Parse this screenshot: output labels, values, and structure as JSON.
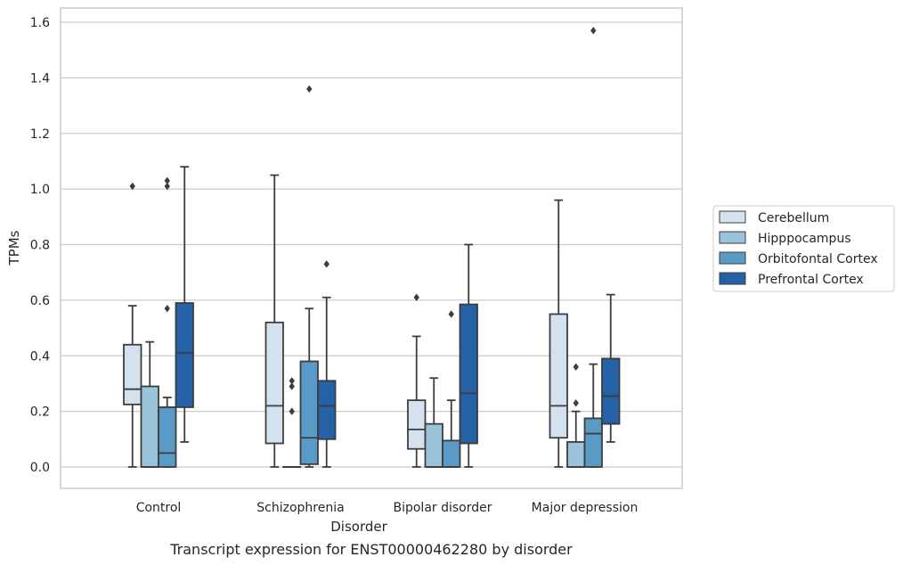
{
  "chart_data": {
    "type": "box",
    "title": "",
    "caption": "Transcript expression for ENST00000462280 by disorder",
    "xlabel": "Disorder",
    "ylabel": "TPMs",
    "ylim": [
      -0.075,
      1.65
    ],
    "yticks": [
      0.0,
      0.2,
      0.4,
      0.6,
      0.8,
      1.0,
      1.2,
      1.4,
      1.6
    ],
    "ytick_labels": [
      "0.0",
      "0.2",
      "0.4",
      "0.6",
      "0.8",
      "1.0",
      "1.2",
      "1.4",
      "1.6"
    ],
    "grid": true,
    "legend_position": "right",
    "categories": [
      "Control",
      "Schizophrenia",
      "Bipolar disorder",
      "Major depression"
    ],
    "series": [
      {
        "name": "Cerebellum",
        "color": "#d4e2f0",
        "boxes": [
          {
            "whislo": 0.0,
            "q1": 0.225,
            "med": 0.28,
            "q3": 0.44,
            "whishi": 0.58,
            "fliers": [
              1.01
            ]
          },
          {
            "whislo": 0.0,
            "q1": 0.085,
            "med": 0.22,
            "q3": 0.52,
            "whishi": 1.05,
            "fliers": []
          },
          {
            "whislo": 0.0,
            "q1": 0.065,
            "med": 0.135,
            "q3": 0.24,
            "whishi": 0.47,
            "fliers": [
              0.61
            ]
          },
          {
            "whislo": 0.0,
            "q1": 0.105,
            "med": 0.22,
            "q3": 0.55,
            "whishi": 0.96,
            "fliers": []
          }
        ]
      },
      {
        "name": "Hipppocampus",
        "color": "#9ac3dc",
        "boxes": [
          {
            "whislo": 0.0,
            "q1": 0.0,
            "med": 0.0,
            "q3": 0.29,
            "whishi": 0.45,
            "fliers": []
          },
          {
            "whislo": 0.0,
            "q1": 0.0,
            "med": 0.0,
            "q3": 0.0,
            "whishi": 0.0,
            "fliers": [
              0.2,
              0.29,
              0.31
            ]
          },
          {
            "whislo": 0.0,
            "q1": 0.0,
            "med": 0.0,
            "q3": 0.155,
            "whishi": 0.32,
            "fliers": []
          },
          {
            "whislo": 0.0,
            "q1": 0.0,
            "med": 0.0,
            "q3": 0.09,
            "whishi": 0.2,
            "fliers": [
              0.23,
              0.36
            ]
          }
        ]
      },
      {
        "name": "Orbitofontal Cortex",
        "color": "#5a9ac6",
        "boxes": [
          {
            "whislo": 0.0,
            "q1": 0.0,
            "med": 0.05,
            "q3": 0.215,
            "whishi": 0.25,
            "fliers": [
              0.57,
              1.01,
              1.03
            ]
          },
          {
            "whislo": 0.0,
            "q1": 0.01,
            "med": 0.105,
            "q3": 0.38,
            "whishi": 0.57,
            "fliers": [
              1.36
            ]
          },
          {
            "whislo": 0.0,
            "q1": 0.0,
            "med": 0.0,
            "q3": 0.095,
            "whishi": 0.24,
            "fliers": [
              0.55
            ]
          },
          {
            "whislo": 0.0,
            "q1": 0.0,
            "med": 0.12,
            "q3": 0.175,
            "whishi": 0.37,
            "fliers": [
              1.57
            ]
          }
        ]
      },
      {
        "name": "Prefrontal Cortex",
        "color": "#2461a6",
        "boxes": [
          {
            "whislo": 0.09,
            "q1": 0.215,
            "med": 0.41,
            "q3": 0.59,
            "whishi": 1.08,
            "fliers": []
          },
          {
            "whislo": 0.0,
            "q1": 0.1,
            "med": 0.22,
            "q3": 0.31,
            "whishi": 0.61,
            "fliers": [
              0.73
            ]
          },
          {
            "whislo": 0.0,
            "q1": 0.085,
            "med": 0.265,
            "q3": 0.585,
            "whishi": 0.8,
            "fliers": []
          },
          {
            "whislo": 0.09,
            "q1": 0.155,
            "med": 0.255,
            "q3": 0.39,
            "whishi": 0.62,
            "fliers": []
          }
        ]
      }
    ]
  }
}
